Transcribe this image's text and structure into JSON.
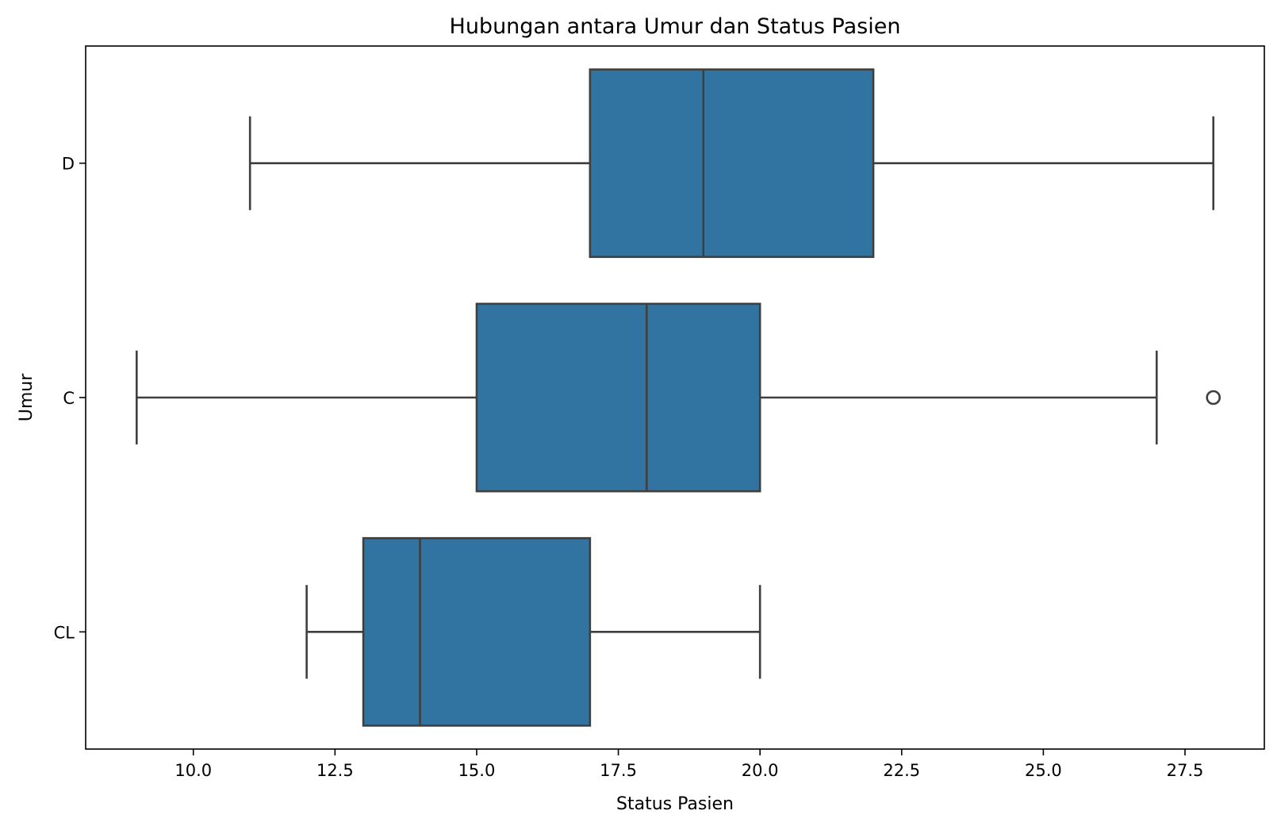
{
  "chart_data": {
    "type": "boxplot",
    "orientation": "horizontal",
    "title": "Hubungan antara Umur dan Status Pasien",
    "xlabel": "Status Pasien",
    "ylabel": "Umur",
    "xlim": [
      8.1,
      28.9
    ],
    "xticks": [
      10.0,
      12.5,
      15.0,
      17.5,
      20.0,
      22.5,
      25.0,
      27.5
    ],
    "xtick_labels": [
      "10.0",
      "12.5",
      "15.0",
      "17.5",
      "20.0",
      "22.5",
      "25.0",
      "27.5"
    ],
    "categories": [
      "D",
      "C",
      "CL"
    ],
    "boxes": [
      {
        "category": "D",
        "whisker_low": 11,
        "q1": 17,
        "median": 19,
        "q3": 22,
        "whisker_high": 28,
        "outliers": []
      },
      {
        "category": "C",
        "whisker_low": 9,
        "q1": 15,
        "median": 18,
        "q3": 20,
        "whisker_high": 27,
        "outliers": [
          28
        ]
      },
      {
        "category": "CL",
        "whisker_low": 12,
        "q1": 13,
        "median": 14,
        "q3": 17,
        "whisker_high": 20,
        "outliers": []
      }
    ],
    "grid": false,
    "legend": "none",
    "colors": {
      "box_fill": "#3274a1",
      "line": "#3f3f3f",
      "frame": "#000000"
    }
  }
}
